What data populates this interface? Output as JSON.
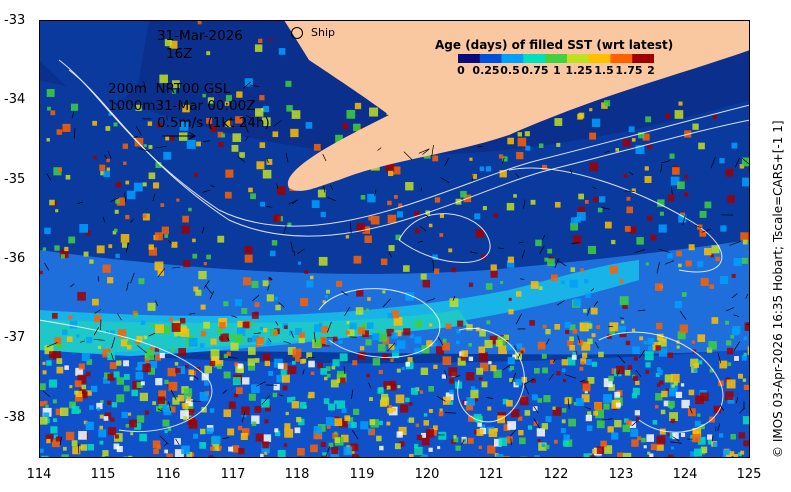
{
  "map": {
    "date_line": "31-Mar-2026",
    "hour_line": "16Z",
    "ship_label": "Ship",
    "contour_line1": "200m  NRT00 GSL",
    "contour_line2": "1000m31-Mar 00:00Z",
    "vector_scale": "0.5m/s (1kt 24h)",
    "credit": "© IMOS 03-Apr-2026 16:35 Hobart; Tscale=CARS+[-1 1]",
    "land_color": "#fac8a0"
  },
  "colorbar": {
    "title": "Age (days) of filled SST (wrt latest)",
    "labels": [
      "0",
      "0.25",
      "0.5",
      "0.75",
      "1",
      "1.25",
      "1.5",
      "1.75",
      "2"
    ],
    "colors": [
      "#0a0a7a",
      "#0050e0",
      "#00a0ff",
      "#00e0c0",
      "#40d040",
      "#c0e020",
      "#ffc000",
      "#ff6000",
      "#a00000"
    ]
  },
  "axes": {
    "lon_ticks": [
      "114",
      "115",
      "116",
      "117",
      "118",
      "119",
      "120",
      "121",
      "122",
      "123",
      "124",
      "125"
    ],
    "lat_ticks": [
      "-33",
      "-34",
      "-35",
      "-36",
      "-37",
      "-38"
    ]
  }
}
